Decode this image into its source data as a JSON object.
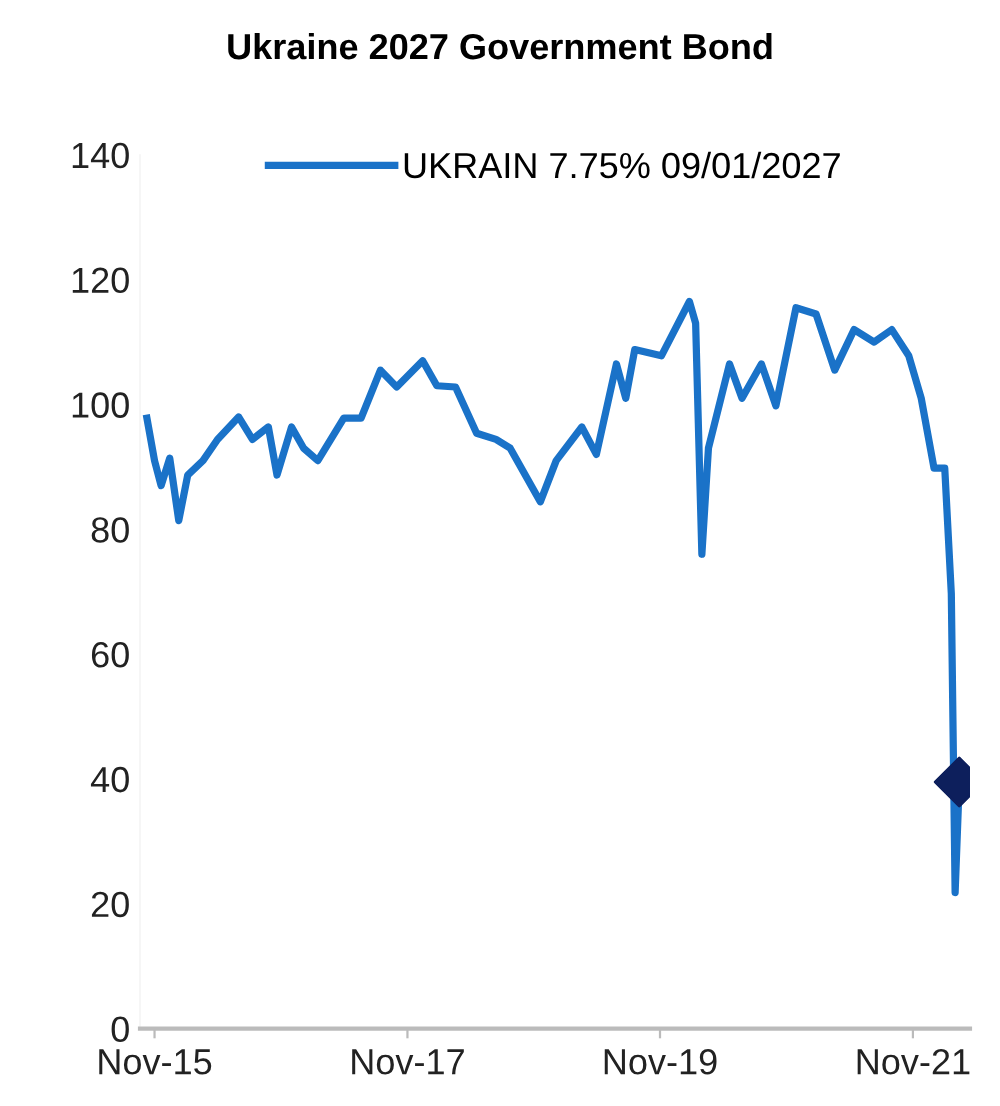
{
  "chart_data": {
    "type": "line",
    "title": "Ukraine 2027 Government Bond",
    "series": [
      {
        "name": "UKRAIN 7.75% 09/01/2027",
        "color": "#1a72c8",
        "x": [
          "2015-10-10",
          "2015-11-01",
          "2015-11-20",
          "2015-12-15",
          "2016-01-10",
          "2016-02-05",
          "2016-03-20",
          "2016-05-01",
          "2016-07-01",
          "2016-08-10",
          "2016-09-25",
          "2016-10-20",
          "2016-12-01",
          "2017-01-05",
          "2017-02-15",
          "2017-05-01",
          "2017-06-20",
          "2017-08-15",
          "2017-10-01",
          "2017-12-15",
          "2018-01-25",
          "2018-03-20",
          "2018-05-20",
          "2018-07-15",
          "2018-08-25",
          "2018-11-20",
          "2019-01-05",
          "2019-03-20",
          "2019-05-01",
          "2019-06-28",
          "2019-07-25",
          "2019-08-20",
          "2019-11-05",
          "2020-01-25",
          "2020-02-12",
          "2020-03-01",
          "2020-03-20",
          "2020-05-20",
          "2020-06-25",
          "2020-08-20",
          "2020-10-01",
          "2020-11-28",
          "2021-01-25",
          "2021-03-20",
          "2021-05-15",
          "2021-07-12",
          "2021-09-01",
          "2021-10-20",
          "2021-11-25",
          "2022-01-01",
          "2022-02-01",
          "2022-02-20",
          "2022-03-03",
          "2022-03-15"
        ],
        "values": [
          97.8,
          91,
          87,
          91.4,
          81.4,
          88.7,
          91,
          94.4,
          98,
          94.4,
          96.4,
          88.7,
          96.4,
          93,
          91,
          97.8,
          97.8,
          105.5,
          102.8,
          107,
          103,
          102.8,
          95.4,
          94.4,
          93,
          84.4,
          91,
          96.4,
          92,
          106.5,
          101,
          108.8,
          107.8,
          116.5,
          113,
          76,
          93,
          106.5,
          101,
          106.5,
          99.8,
          115.5,
          114.5,
          105.5,
          112,
          110,
          112,
          107.8,
          101,
          89.8,
          89.8,
          69.7,
          21.8,
          39.5
        ],
        "marker": "none"
      },
      {
        "type": "scatter",
        "color": "#0d1f5c",
        "x": [
          "2022-03-15"
        ],
        "values": [
          39.5
        ],
        "marker": "diamond"
      }
    ],
    "xlim": [
      "2015-09-20",
      "2022-04-15"
    ],
    "xticks": [
      {
        "value": "2015-11-01",
        "label": "Nov-15"
      },
      {
        "value": "2017-11-01",
        "label": "Nov-17"
      },
      {
        "value": "2019-11-01",
        "label": "Nov-19"
      },
      {
        "value": "2021-11-01",
        "label": "Nov-21"
      }
    ],
    "ylim": [
      0,
      140
    ],
    "yticks": [
      0,
      20,
      40,
      60,
      80,
      100,
      120,
      140
    ],
    "grid": false,
    "legend": "top"
  }
}
